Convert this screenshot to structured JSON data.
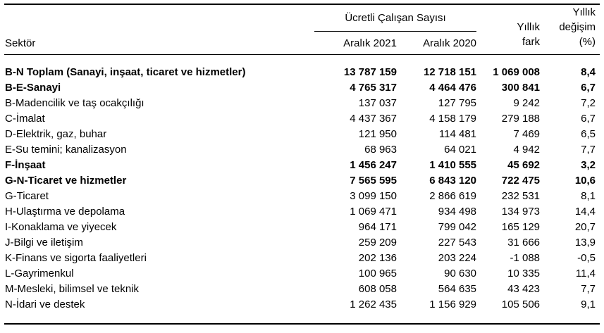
{
  "table": {
    "row_header": "Sektör",
    "group_header": "Ücretli Çalışan Sayısı",
    "columns": {
      "dec2021": "Aralık 2021",
      "dec2020": "Aralık 2020",
      "fark": [
        "Yıllık",
        "fark"
      ],
      "degisim": [
        "Yıllık",
        "değişim",
        "(%)"
      ]
    },
    "rows": [
      {
        "sector": "B-N Toplam (Sanayi, inşaat, ticaret ve hizmetler)",
        "dec2021": "13 787 159",
        "dec2020": "12 718 151",
        "fark": "1 069 008",
        "degisim": "8,4",
        "bold": true
      },
      {
        "sector": "B-E-Sanayi",
        "dec2021": "4 765 317",
        "dec2020": "4 464 476",
        "fark": "300 841",
        "degisim": "6,7",
        "bold": true
      },
      {
        "sector": "B-Madencilik ve taş ocakçılığı",
        "dec2021": "137 037",
        "dec2020": "127 795",
        "fark": "9 242",
        "degisim": "7,2",
        "bold": false
      },
      {
        "sector": "C-İmalat",
        "dec2021": "4 437 367",
        "dec2020": "4 158 179",
        "fark": "279 188",
        "degisim": "6,7",
        "bold": false
      },
      {
        "sector": "D-Elektrik, gaz, buhar",
        "dec2021": "121 950",
        "dec2020": "114 481",
        "fark": "7 469",
        "degisim": "6,5",
        "bold": false
      },
      {
        "sector": "E-Su temini; kanalizasyon",
        "dec2021": "68 963",
        "dec2020": "64 021",
        "fark": "4 942",
        "degisim": "7,7",
        "bold": false
      },
      {
        "sector": "F-İnşaat",
        "dec2021": "1 456 247",
        "dec2020": "1 410 555",
        "fark": "45 692",
        "degisim": "3,2",
        "bold": true
      },
      {
        "sector": "G-N-Ticaret ve hizmetler",
        "dec2021": "7 565 595",
        "dec2020": "6 843 120",
        "fark": "722 475",
        "degisim": "10,6",
        "bold": true
      },
      {
        "sector": "G-Ticaret",
        "dec2021": "3 099 150",
        "dec2020": "2 866 619",
        "fark": "232 531",
        "degisim": "8,1",
        "bold": false
      },
      {
        "sector": "H-Ulaştırma ve depolama",
        "dec2021": "1 069 471",
        "dec2020": "934 498",
        "fark": "134 973",
        "degisim": "14,4",
        "bold": false
      },
      {
        "sector": "I-Konaklama ve yiyecek",
        "dec2021": "964 171",
        "dec2020": "799 042",
        "fark": "165 129",
        "degisim": "20,7",
        "bold": false
      },
      {
        "sector": "J-Bilgi ve iletişim",
        "dec2021": "259 209",
        "dec2020": "227 543",
        "fark": "31 666",
        "degisim": "13,9",
        "bold": false
      },
      {
        "sector": "K-Finans ve sigorta faaliyetleri",
        "dec2021": "202 136",
        "dec2020": "203 224",
        "fark": "-1 088",
        "degisim": "-0,5",
        "bold": false
      },
      {
        "sector": "L-Gayrimenkul",
        "dec2021": "100 965",
        "dec2020": "90 630",
        "fark": "10 335",
        "degisim": "11,4",
        "bold": false
      },
      {
        "sector": "M-Mesleki, bilimsel ve teknik",
        "dec2021": "608 058",
        "dec2020": "564 635",
        "fark": "43 423",
        "degisim": "7,7",
        "bold": false
      },
      {
        "sector": "N-İdari ve destek",
        "dec2021": "1 262 435",
        "dec2020": "1 156 929",
        "fark": "105 506",
        "degisim": "9,1",
        "bold": false
      }
    ]
  }
}
